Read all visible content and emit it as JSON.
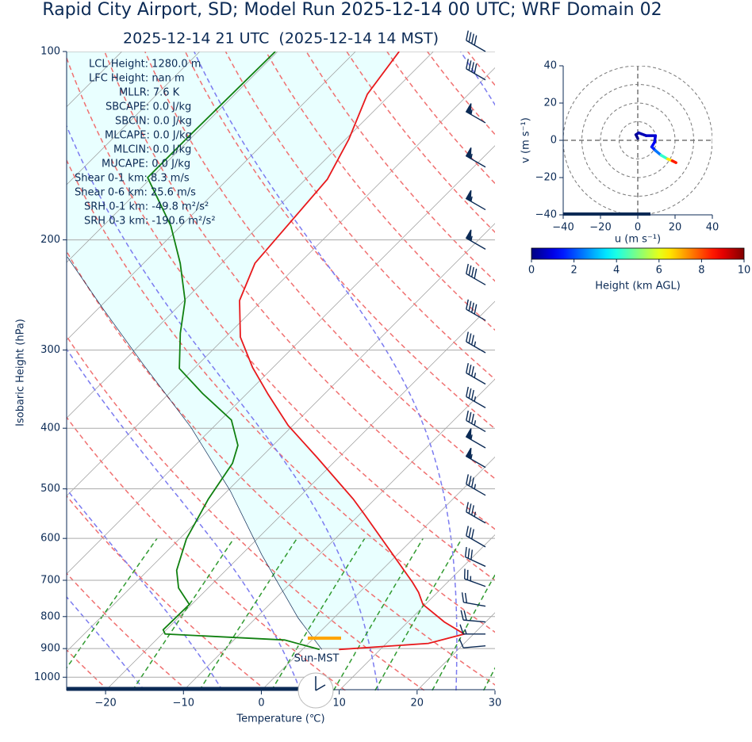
{
  "chart_data": [
    {
      "type": "skewt",
      "title": "Rapid City Airport, SD; Model Run 2025-12-14 00 UTC; WRF Domain 02",
      "subtitle": "2025-12-14 21 UTC  (2025-12-14 14 MST)",
      "xlabel": "Temperature (℃)",
      "ylabel": "Isobaric Height (hPa)",
      "xlim": [
        -25,
        30
      ],
      "ylim": [
        1050,
        100
      ],
      "log_y": true,
      "grid": true,
      "xticks": [
        {
          "value": -20,
          "label": "−20"
        },
        {
          "value": -10,
          "label": "−10"
        },
        0,
        10,
        20,
        30
      ],
      "yticks": [
        100,
        200,
        300,
        400,
        500,
        600,
        700,
        800,
        900,
        1000
      ],
      "series": [
        {
          "color": "#e8191c",
          "pressure": [
            903,
            883,
            853,
            816,
            765,
            732,
            705,
            550,
            519,
            446,
            396,
            353,
            320,
            286,
            250,
            218,
            160,
            138,
            117,
            100
          ],
          "values": [
            4.7,
            15.4,
            18.8,
            14.7,
            9.7,
            7.6,
            5.5,
            -9.3,
            -12.8,
            -22.7,
            -30.6,
            -37.2,
            -42.6,
            -48.1,
            -52.9,
            -55.7,
            -57.2,
            -59.6,
            -63.0,
            -64.4
          ]
        },
        {
          "color": "#108010",
          "pressure": [
            903,
            872,
            853,
            840,
            765,
            720,
            675,
            601,
            519,
            455,
            426,
            388,
            352,
            321,
            282,
            250,
            218,
            190,
            159,
            136,
            100
          ],
          "values": [
            2.2,
            -3.5,
            -19.6,
            -20.4,
            -20.3,
            -23.8,
            -26.3,
            -29.1,
            -31.4,
            -32.9,
            -34.5,
            -38.6,
            -45.7,
            -51.9,
            -56.3,
            -59.9,
            -65.3,
            -71.3,
            -80.5,
            -80.5,
            -80.3
          ]
        }
      ],
      "parcel": {
        "color": "#0b2a55",
        "pressure": [
          903,
          804,
          637,
          504,
          399,
          316,
          258,
          213
        ],
        "values": [
          2.5,
          -4.6,
          -17.4,
          -29.6,
          -42.8,
          -57.1,
          -69.3,
          -80.6
        ]
      },
      "wind": {
        "color": "#0b2a55",
        "pressure": [
          100,
          111,
          130,
          153,
          179,
          207,
          236,
          269,
          303,
          340,
          371,
          405,
          430,
          462,
          512,
          567,
          619,
          665,
          716,
          770,
          816,
          853,
          891
        ],
        "speed": [
          40,
          40,
          55,
          55,
          55,
          55,
          40,
          40,
          35,
          35,
          35,
          35,
          55,
          55,
          35,
          35,
          30,
          30,
          25,
          20,
          20,
          15,
          10
        ],
        "direction": [
          300,
          300,
          300,
          300,
          300,
          300,
          300,
          300,
          300,
          300,
          300,
          300,
          300,
          300,
          300,
          300,
          300,
          295,
          290,
          280,
          275,
          270,
          265
        ]
      },
      "stats": [
        "LCL Height: 1280.0 m",
        "LFC Height: nan m",
        "MLLR: 7.6 K",
        "SBCAPE: 0.0 J/kg",
        "SBCIN: 0.0 J/kg",
        "MLCAPE: 0.0 J/kg",
        "MLCIN: 0.0 J/kg",
        "MUCAPE: 0.0 J/kg",
        "Shear 0-1 km: 8.3 m/s",
        "Shear 0-6 km: 25.6 m/s",
        "SRH 0-1 km: -49.8 m²/s²",
        "SRH 0-3 km: -190.6 m²/s²"
      ],
      "time_zone_label": "Sun-MST"
    },
    {
      "type": "hodograph",
      "xlabel": "u (m s⁻¹)",
      "ylabel": "v (m s⁻¹)",
      "xlim": [
        -40,
        40
      ],
      "ylim": [
        -40,
        40
      ],
      "xticks": [
        {
          "value": -40,
          "label": "−40"
        },
        {
          "value": -20,
          "label": "−20"
        },
        0,
        20,
        40
      ],
      "yticks": [
        {
          "value": -40,
          "label": "−40"
        },
        {
          "value": -20,
          "label": "−20"
        },
        0,
        20,
        40
      ],
      "rings": [
        10,
        20,
        30,
        40
      ],
      "u": [
        0,
        -1,
        0.5,
        4.5,
        9.5,
        9,
        7.5,
        9.5,
        12.5,
        16,
        18.5,
        20.5
      ],
      "v": [
        1,
        3,
        4,
        2.5,
        2.5,
        -1,
        -3.5,
        -5.5,
        -8,
        -10,
        -11,
        -12
      ],
      "height": [
        0,
        0.2,
        0.4,
        0.6,
        0.8,
        1,
        1.3,
        1.8,
        3,
        5.5,
        7.5,
        9.5
      ],
      "colorbar": {
        "label": "Height (km AGL)",
        "lim": [
          0,
          10
        ],
        "ticks": [
          0,
          2,
          4,
          6,
          8,
          10
        ],
        "colormap": "jet"
      }
    }
  ]
}
